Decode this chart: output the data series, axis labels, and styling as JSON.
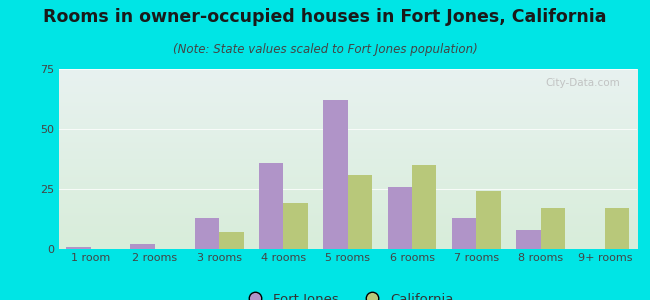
{
  "title": "Rooms in owner-occupied houses in Fort Jones, California",
  "subtitle": "(Note: State values scaled to Fort Jones population)",
  "categories": [
    "1 room",
    "2 rooms",
    "3 rooms",
    "4 rooms",
    "5 rooms",
    "6 rooms",
    "7 rooms",
    "8 rooms",
    "9+ rooms"
  ],
  "fort_jones": [
    1,
    2,
    13,
    36,
    62,
    26,
    13,
    8,
    0
  ],
  "california": [
    0,
    0,
    7,
    19,
    31,
    35,
    24,
    17,
    17
  ],
  "fort_jones_color": "#b094c8",
  "california_color": "#b8c87a",
  "background_outer": "#00e5e5",
  "background_inner_top": "#e8f2f0",
  "background_inner_bottom": "#d8edda",
  "ylim": [
    0,
    75
  ],
  "yticks": [
    0,
    25,
    50,
    75
  ],
  "bar_width": 0.38,
  "title_fontsize": 12.5,
  "subtitle_fontsize": 8.5,
  "tick_fontsize": 8,
  "legend_fontsize": 9.5
}
